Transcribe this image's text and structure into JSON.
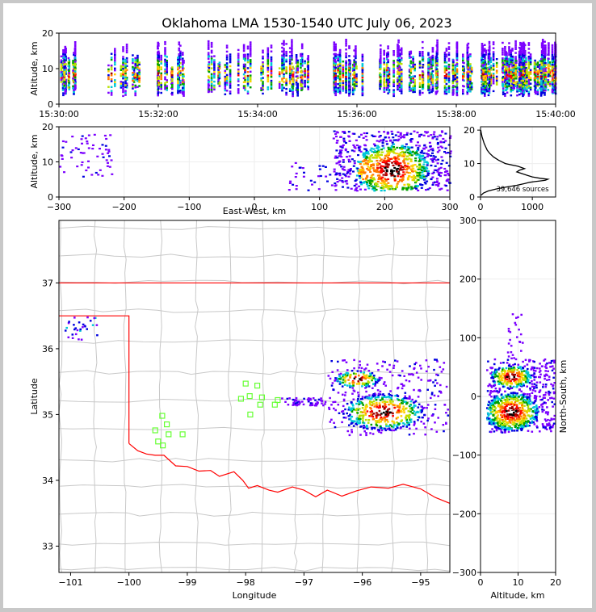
{
  "chart_data": [
    {
      "id": "time_height",
      "type": "heatmap",
      "title": "Oklahoma LMA 1530-1540 UTC July 06, 2023",
      "ylabel": "Altitude, km",
      "ylim": [
        0,
        20
      ],
      "y_ticks": [
        "0",
        "10",
        "20"
      ],
      "x_ticks": [
        "15:30:00",
        "15:32:00",
        "15:34:00",
        "15:36:00",
        "15:38:00",
        "15:40:00"
      ],
      "xlim_minutes": [
        0,
        10
      ]
    },
    {
      "id": "ew_altitude",
      "type": "heatmap",
      "xlabel": "East-West, km",
      "ylabel": "Altitude, km",
      "xlim": [
        -300,
        300
      ],
      "ylim": [
        0,
        20
      ],
      "x_ticks": [
        "−300",
        "−200",
        "−100",
        "0",
        "100",
        "200",
        "300"
      ],
      "y_ticks": [
        "0",
        "10",
        "20"
      ]
    },
    {
      "id": "altitude_histogram",
      "type": "line",
      "xlim": [
        0,
        1450
      ],
      "ylim": [
        0,
        21
      ],
      "x_ticks": [
        "0",
        "1000"
      ],
      "y_ticks": [
        "0",
        "10",
        "20"
      ],
      "annotation": "39,646 sources",
      "x": [
        10,
        60,
        150,
        300,
        500,
        700,
        850,
        950,
        1050,
        1150,
        1250,
        1300,
        1150,
        1000,
        900,
        800,
        700,
        750,
        850,
        720,
        480,
        350,
        250,
        180,
        130,
        100,
        70,
        50,
        30,
        15,
        5
      ],
      "y": [
        0.5,
        1.2,
        1.8,
        2.4,
        3.0,
        3.5,
        4.0,
        4.4,
        4.6,
        4.8,
        5.0,
        5.3,
        5.6,
        6.0,
        6.5,
        7.0,
        7.5,
        8.0,
        8.5,
        9.2,
        10.0,
        11.0,
        12.0,
        13.0,
        14.0,
        15.0,
        16.0,
        17.0,
        18.0,
        19.0,
        20.0
      ]
    },
    {
      "id": "plan_view",
      "type": "heatmap",
      "xlabel": "Longitude",
      "ylabel": "Latitude",
      "xlim": [
        -101.2,
        -94.5
      ],
      "ylim": [
        32.6,
        37.95
      ],
      "x_ticks": [
        "−101",
        "−100",
        "−99",
        "−98",
        "−97",
        "−96",
        "−95"
      ],
      "y_ticks": [
        "33",
        "34",
        "35",
        "36",
        "37"
      ],
      "stations": [
        [
          -98.0,
          35.47
        ],
        [
          -97.8,
          35.44
        ],
        [
          -98.08,
          35.24
        ],
        [
          -97.93,
          35.28
        ],
        [
          -97.72,
          35.26
        ],
        [
          -97.5,
          35.15
        ],
        [
          -97.45,
          35.22
        ],
        [
          -97.75,
          35.15
        ],
        [
          -97.92,
          35.0
        ],
        [
          -99.43,
          34.98
        ],
        [
          -99.35,
          34.85
        ],
        [
          -99.55,
          34.76
        ],
        [
          -99.32,
          34.7
        ],
        [
          -99.08,
          34.7
        ],
        [
          -99.5,
          34.59
        ],
        [
          -99.42,
          34.53
        ]
      ]
    },
    {
      "id": "ns_altitude",
      "type": "heatmap",
      "xlabel": "Altitude, km",
      "ylabel": "North-South, km",
      "xlim": [
        0,
        20
      ],
      "ylim": [
        -300,
        300
      ],
      "x_ticks": [
        "0",
        "10",
        "20"
      ],
      "y_ticks": [
        "−300",
        "−200",
        "−100",
        "0",
        "100",
        "200",
        "300"
      ]
    }
  ],
  "colors": {
    "density_ramp": [
      "#7b00ff",
      "#0000e0",
      "#00c8d8",
      "#00a000",
      "#b8e000",
      "#ffd000",
      "#ff7800",
      "#ff0000",
      "#a00000",
      "#000000",
      "#ffffff"
    ],
    "border": "#ff0000",
    "counties": "#c8c8c8",
    "stations": "#66ff33"
  }
}
